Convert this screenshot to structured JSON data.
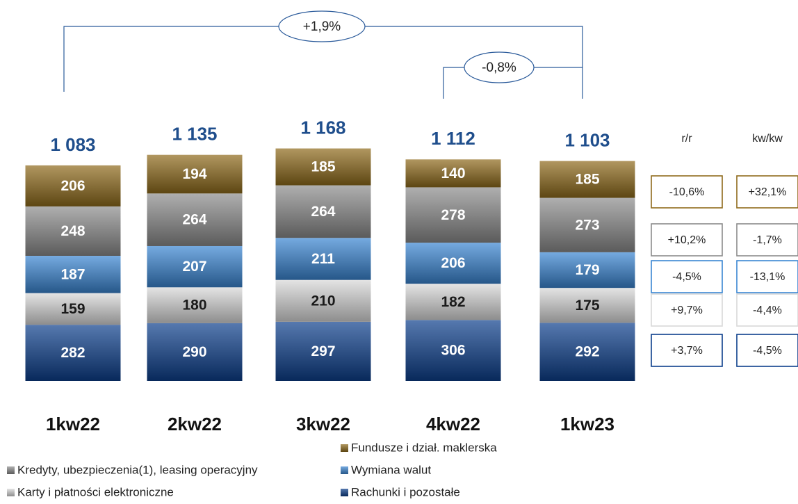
{
  "chart_data": {
    "type": "stacked_bar",
    "categories": [
      "1kw22",
      "2kw22",
      "3kw22",
      "4kw22",
      "1kw23"
    ],
    "series": [
      {
        "name": "Rachunki i pozostałe",
        "color": "#0d3f8c",
        "values": [
          282,
          290,
          297,
          306,
          292
        ]
      },
      {
        "name": "Karty i płatności elektroniczne",
        "color": "#d9d9d9",
        "values": [
          159,
          180,
          210,
          182,
          175
        ]
      },
      {
        "name": "Wymiana walut",
        "color": "#3a86d2",
        "values": [
          187,
          207,
          211,
          206,
          179
        ]
      },
      {
        "name": "Kredyty, ubezpieczenia(1), leasing operacyjny",
        "color": "#8c8c8c",
        "values": [
          248,
          264,
          264,
          278,
          273
        ]
      },
      {
        "name": "Fundusze i dział. maklerska",
        "color": "#8f6b1c",
        "values": [
          206,
          194,
          185,
          140,
          185
        ]
      }
    ],
    "totals": [
      1083,
      1135,
      1168,
      1112,
      1103
    ],
    "total_labels": [
      "1 083",
      "1 135",
      "1 168",
      "1 112",
      "1 103"
    ],
    "annotations": [
      "+1,9%",
      "-0,8%"
    ],
    "table": {
      "headers": [
        "r/r",
        "kw/kw"
      ],
      "rows": [
        [
          "-10,6%",
          "+32,1%"
        ],
        [
          "+10,2%",
          "-1,7%"
        ],
        [
          "-4,5%",
          "-13,1%"
        ],
        [
          "+9,7%",
          "-4,4%"
        ],
        [
          "+3,7%",
          "-4,5%"
        ]
      ]
    }
  }
}
